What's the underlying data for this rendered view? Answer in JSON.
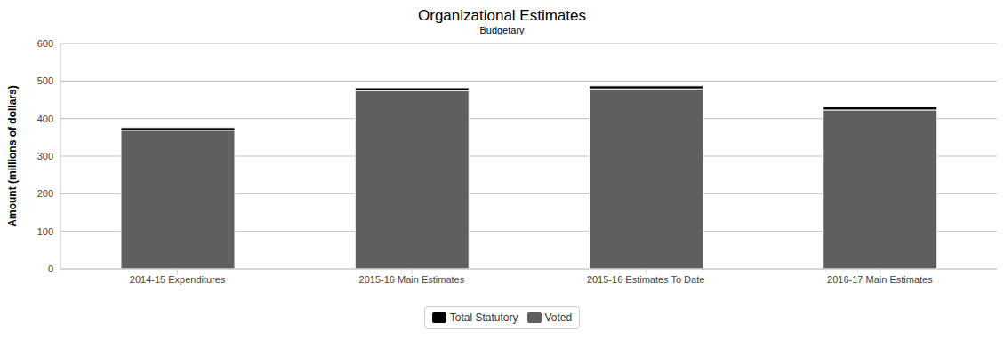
{
  "chart_data": {
    "type": "bar",
    "title": "Organizational Estimates",
    "subtitle": "Budgetary",
    "y_label": "Amount (millions of dollars)",
    "categories": [
      "2014-15 Expenditures",
      "2015-16 Main Estimates",
      "2015-16 Estimates To Date",
      "2016-17 Main Estimates"
    ],
    "series": [
      {
        "name": "Total Statutory",
        "color": "#000000",
        "values": [
          7,
          8,
          8,
          8
        ]
      },
      {
        "name": "Voted",
        "color": "#5f5f5f",
        "values": [
          369,
          474,
          479,
          423
        ]
      }
    ],
    "stacked": true,
    "ylim": [
      0,
      600
    ],
    "yticks": [
      0,
      100,
      200,
      300,
      400,
      500,
      600
    ],
    "grid": true,
    "legend": "bottom"
  }
}
